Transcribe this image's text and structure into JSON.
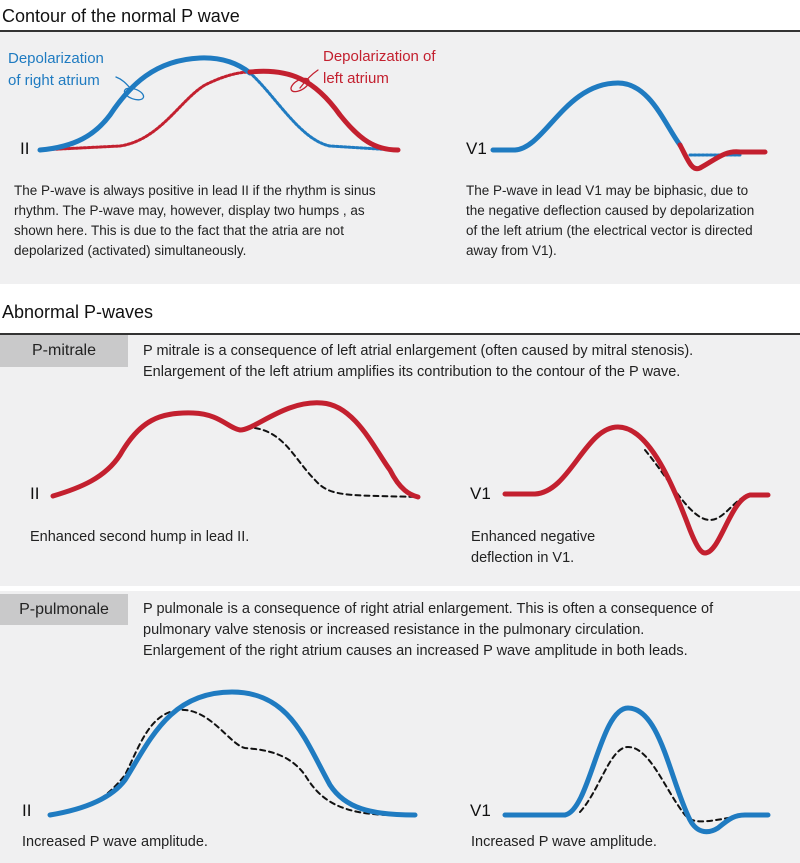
{
  "colors": {
    "right_atrium": "#1f7bc1",
    "left_atrium": "#c3202f",
    "panel": "#f0f0f1",
    "tag": "#c9c9ca"
  },
  "normal": {
    "title": "Contour of the normal P wave",
    "right_label": "Depolarization\nof right atrium",
    "left_label": "Depolarization of\nleft atrium",
    "lead_ii": "II",
    "lead_v1": "V1",
    "text_ii": "The P-wave is always positive in lead II if the rhythm is sinus\nrhythm. The P-wave may, however, display two humps , as\nshown here. This is due to the fact that the atria are not\ndepolarized (activated) simultaneously.",
    "text_v1": "The P-wave in lead V1 may be biphasic, due to\nthe negative deflection caused by depolarization\nof the left atrium (the electrical vector is directed\naway from V1)."
  },
  "abnormal": {
    "title": "Abnormal P-waves",
    "mitrale": {
      "tag": "P-mitrale",
      "description": "P mitrale is a consequence of left atrial enlargement (often caused by mitral stenosis).\nEnlargement of the left atrium amplifies its contribution to the contour of the P wave.",
      "lead_ii": "II",
      "lead_v1": "V1",
      "caption_ii": "Enhanced second hump in lead II.",
      "caption_v1": "Enhanced negative\ndeflection in V1."
    },
    "pulmonale": {
      "tag": "P-pulmonale",
      "description": "P pulmonale is a consequence of right atrial enlargement. This is often a consequence of\npulmonary valve stenosis or increased resistance in the pulmonary circulation.\nEnlargement of the right atrium causes an increased P wave amplitude in both leads.",
      "lead_ii": "II",
      "lead_v1": "V1",
      "caption_ii": "Increased P wave amplitude.",
      "caption_v1": "Increased P wave amplitude."
    }
  }
}
